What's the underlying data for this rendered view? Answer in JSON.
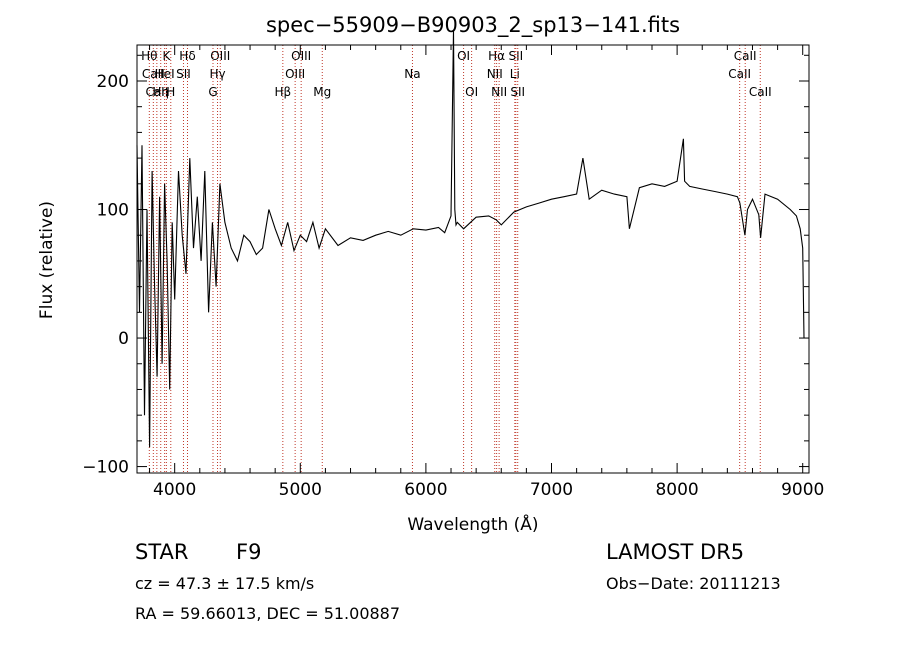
{
  "chart_data": {
    "type": "line",
    "title": "spec−55909−B90903_2_sp13−141.fits",
    "xlabel": "Wavelength (Å)",
    "ylabel": "Flux (relative)",
    "xlim": [
      3700,
      9050
    ],
    "ylim": [
      -105,
      228
    ],
    "xticks": [
      4000,
      5000,
      6000,
      7000,
      8000,
      9000
    ],
    "yticks": [
      -100,
      0,
      100,
      200
    ],
    "spectrum": {
      "x": [
        3700,
        3720,
        3740,
        3760,
        3780,
        3800,
        3820,
        3840,
        3860,
        3880,
        3900,
        3920,
        3940,
        3960,
        3980,
        4000,
        4030,
        4060,
        4090,
        4120,
        4150,
        4180,
        4210,
        4240,
        4270,
        4300,
        4330,
        4360,
        4400,
        4450,
        4500,
        4550,
        4600,
        4650,
        4700,
        4750,
        4800,
        4850,
        4900,
        4950,
        5000,
        5050,
        5100,
        5150,
        5200,
        5300,
        5400,
        5500,
        5600,
        5700,
        5800,
        5900,
        6000,
        6100,
        6150,
        6200,
        6220,
        6230,
        6240,
        6250,
        6300,
        6400,
        6500,
        6560,
        6600,
        6700,
        6800,
        6900,
        7000,
        7100,
        7200,
        7250,
        7300,
        7400,
        7500,
        7600,
        7620,
        7700,
        7800,
        7900,
        8000,
        8050,
        8060,
        8100,
        8200,
        8300,
        8400,
        8480,
        8500,
        8540,
        8560,
        8600,
        8650,
        8665,
        8700,
        8800,
        8900,
        8950,
        8980,
        9000,
        9010,
        9020
      ],
      "y": [
        150,
        20,
        150,
        -60,
        100,
        -85,
        130,
        40,
        -30,
        110,
        -20,
        120,
        60,
        -40,
        90,
        30,
        130,
        80,
        50,
        140,
        70,
        110,
        60,
        130,
        20,
        90,
        40,
        120,
        90,
        70,
        60,
        80,
        75,
        65,
        70,
        100,
        85,
        72,
        90,
        68,
        80,
        75,
        90,
        70,
        85,
        72,
        78,
        76,
        80,
        83,
        80,
        85,
        84,
        86,
        82,
        95,
        240,
        100,
        88,
        90,
        85,
        94,
        95,
        92,
        88,
        98,
        102,
        105,
        108,
        110,
        112,
        140,
        108,
        115,
        112,
        110,
        85,
        117,
        120,
        118,
        122,
        155,
        122,
        118,
        116,
        114,
        112,
        110,
        105,
        80,
        100,
        108,
        96,
        78,
        112,
        108,
        100,
        95,
        85,
        70,
        0,
        0
      ]
    },
    "lines": [
      {
        "name": "Hθ",
        "x": 3798,
        "row": 0
      },
      {
        "name": "CaII",
        "x": 3830,
        "row": 1
      },
      {
        "name": "CaII",
        "x": 3858,
        "row": 2
      },
      {
        "name": "Hη",
        "x": 3889,
        "row": 2
      },
      {
        "name": "K",
        "x": 3934,
        "row": 0
      },
      {
        "name": "HeI",
        "x": 3920,
        "row": 1
      },
      {
        "name": "H",
        "x": 3969,
        "row": 2
      },
      {
        "name": "Hδ",
        "x": 4102,
        "row": 0
      },
      {
        "name": "SII",
        "x": 4070,
        "row": 1
      },
      {
        "name": "OIII",
        "x": 4363,
        "row": 0
      },
      {
        "name": "Hγ",
        "x": 4341,
        "row": 1
      },
      {
        "name": "G",
        "x": 4305,
        "row": 2
      },
      {
        "name": "Hβ",
        "x": 4861,
        "row": 2
      },
      {
        "name": "OIII",
        "x": 4959,
        "row": 1
      },
      {
        "name": "OIII",
        "x": 5007,
        "row": 0
      },
      {
        "name": "Mg",
        "x": 5175,
        "row": 2
      },
      {
        "name": "Na",
        "x": 5893,
        "row": 1
      },
      {
        "name": "OI",
        "x": 6300,
        "row": 0
      },
      {
        "name": "OI",
        "x": 6364,
        "row": 2
      },
      {
        "name": "Hα",
        "x": 6563,
        "row": 0
      },
      {
        "name": "NII",
        "x": 6548,
        "row": 1
      },
      {
        "name": "NII",
        "x": 6583,
        "row": 2
      },
      {
        "name": "SII",
        "x": 6716,
        "row": 0
      },
      {
        "name": "Li",
        "x": 6708,
        "row": 1
      },
      {
        "name": "SII",
        "x": 6731,
        "row": 2
      },
      {
        "name": "CaII",
        "x": 8498,
        "row": 1
      },
      {
        "name": "CaII",
        "x": 8542,
        "row": 0
      },
      {
        "name": "CaII",
        "x": 8662,
        "row": 2
      }
    ]
  },
  "info": {
    "object_class": "STAR",
    "subclass": "F9",
    "survey": "LAMOST DR5",
    "cz": "cz = 47.3 ± 17.5 km/s",
    "obs_date": "Obs−Date: 20111213",
    "coords": "RA =  59.66013, DEC =  51.00887"
  }
}
